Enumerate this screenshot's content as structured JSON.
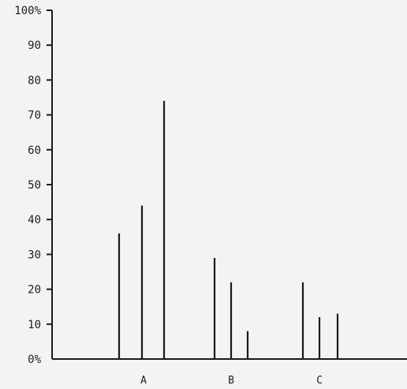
{
  "chart_data": {
    "type": "bar",
    "title": "",
    "xlabel": "",
    "ylabel": "",
    "ylim": [
      0,
      100
    ],
    "y_ticks": [
      {
        "value": 100,
        "label": "100%"
      },
      {
        "value": 90,
        "label": "90"
      },
      {
        "value": 80,
        "label": "80"
      },
      {
        "value": 70,
        "label": "70"
      },
      {
        "value": 60,
        "label": "60"
      },
      {
        "value": 50,
        "label": "50"
      },
      {
        "value": 40,
        "label": "40"
      },
      {
        "value": 30,
        "label": "30"
      },
      {
        "value": 20,
        "label": "20"
      },
      {
        "value": 10,
        "label": "10"
      },
      {
        "value": 0,
        "label": "0%"
      }
    ],
    "categories": [
      "A",
      "B",
      "C"
    ],
    "groups": [
      {
        "category": "A",
        "values": [
          36,
          44,
          74
        ]
      },
      {
        "category": "B",
        "values": [
          29,
          22,
          8
        ]
      },
      {
        "category": "C",
        "values": [
          22,
          12,
          13
        ]
      }
    ],
    "grid": false,
    "legend": "none",
    "bar_color": "#1a1a1a"
  }
}
